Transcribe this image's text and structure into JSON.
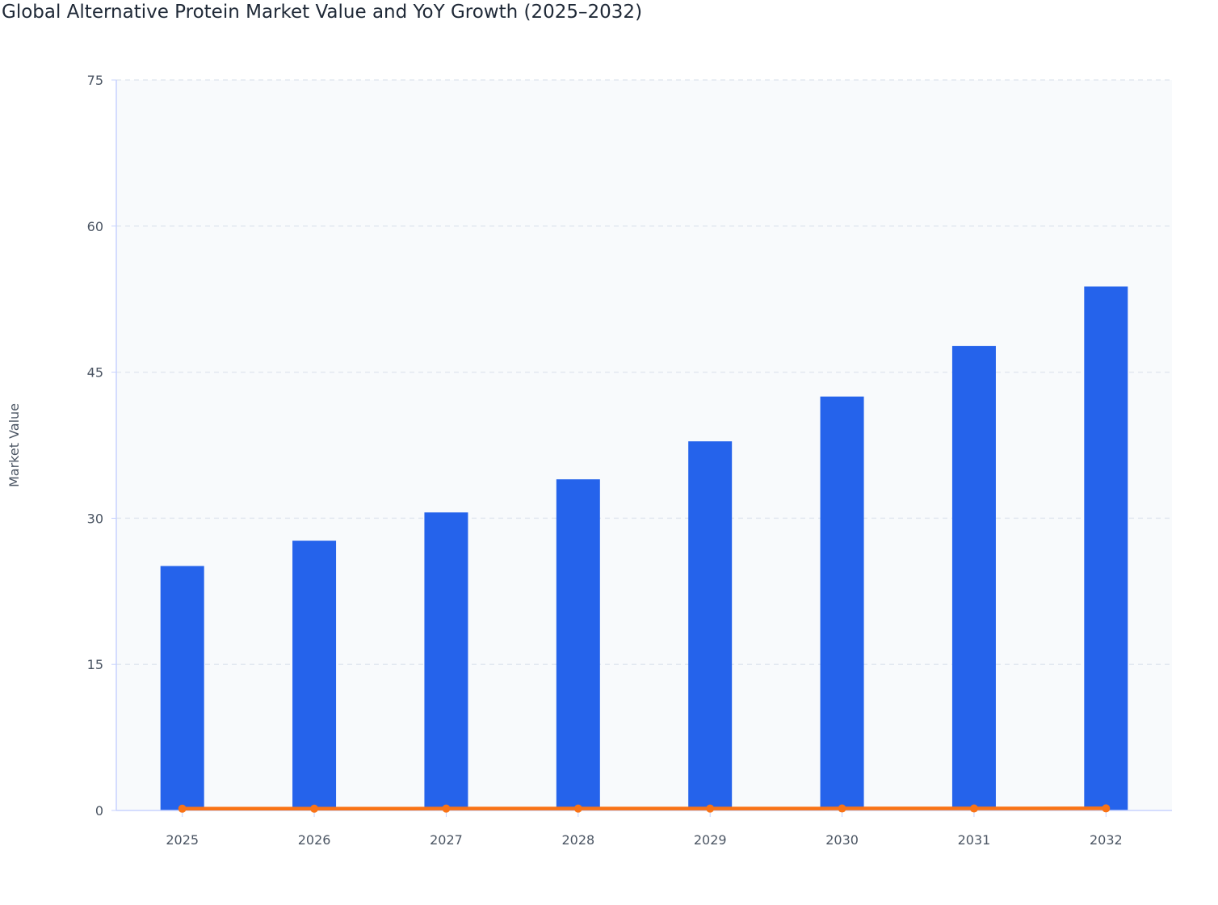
{
  "chart_data": {
    "type": "bar",
    "title": "Global Alternative Protein Market Value and YoY Growth (2025–2032)",
    "xlabel": "",
    "ylabel": "Market Value",
    "ylim": [
      0,
      75
    ],
    "yticks": [
      "0",
      "15",
      "30",
      "45",
      "60",
      "75"
    ],
    "categories": [
      "2025",
      "2026",
      "2027",
      "2028",
      "2029",
      "2030",
      "2031",
      "2032"
    ],
    "grid": true,
    "series": [
      {
        "type": "bar",
        "color": "#2563eb",
        "values": [
          25.1,
          27.7,
          30.6,
          34.0,
          37.9,
          42.5,
          47.7,
          53.8
        ]
      },
      {
        "type": "line",
        "color": "#f97316",
        "values": [
          0.1,
          0.1,
          0.11,
          0.11,
          0.11,
          0.12,
          0.12,
          0.13
        ]
      }
    ]
  }
}
